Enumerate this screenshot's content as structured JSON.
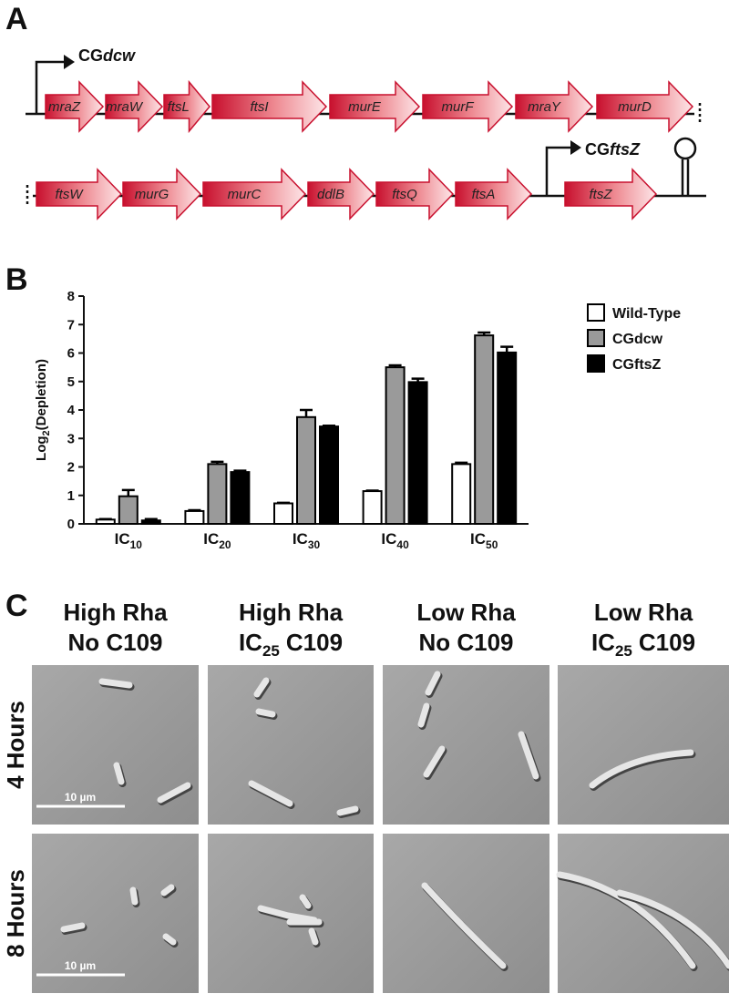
{
  "panels": {
    "a": "A",
    "b": "B",
    "c": "C"
  },
  "operon": {
    "promoter_1": {
      "prefix": "CG",
      "gene": "dcw"
    },
    "row_1": [
      "mraZ",
      "mraW",
      "ftsL",
      "ftsI",
      "murE",
      "murF",
      "mraY",
      "murD"
    ],
    "row_2": [
      "ftsW",
      "murG",
      "murC",
      "ddlB",
      "ftsQ",
      "ftsA",
      "ftsZ"
    ],
    "promoter_2": {
      "prefix": "CG",
      "gene": "ftsZ"
    }
  },
  "chart_data": {
    "type": "bar",
    "y_label": {
      "base": "Log",
      "sub": "2",
      "rest": "(Depletion)"
    },
    "categories": [
      {
        "base": "IC",
        "sub": "10"
      },
      {
        "base": "IC",
        "sub": "20"
      },
      {
        "base": "IC",
        "sub": "30"
      },
      {
        "base": "IC",
        "sub": "40"
      },
      {
        "base": "IC",
        "sub": "50"
      }
    ],
    "series": [
      {
        "name": "Wild-Type",
        "color": "#ffffff",
        "values": [
          0.15,
          0.45,
          0.72,
          1.15,
          2.1
        ],
        "errors": [
          0.02,
          0.03,
          0.02,
          0.02,
          0.05
        ]
      },
      {
        "name": "CGdcw",
        "color": "#9a9a9a",
        "values": [
          0.97,
          2.1,
          3.75,
          5.5,
          6.62
        ],
        "errors": [
          0.22,
          0.08,
          0.25,
          0.07,
          0.1
        ]
      },
      {
        "name": "CGftsZ",
        "color": "#000000",
        "values": [
          0.12,
          1.82,
          3.42,
          4.98,
          6.02
        ],
        "errors": [
          0.05,
          0.05,
          0.03,
          0.12,
          0.2
        ]
      }
    ],
    "ylim": [
      0,
      8
    ],
    "yticks": [
      0,
      1,
      2,
      3,
      4,
      5,
      6,
      7,
      8
    ],
    "grid": false,
    "legend": "right"
  },
  "microscopy": {
    "columns": [
      {
        "line1": "High Rha",
        "line2": "No C109"
      },
      {
        "line1": "High Rha",
        "line2": {
          "base": "IC",
          "sub": "25",
          "rest": "C109"
        }
      },
      {
        "line1": "Low Rha",
        "line2": "No C109"
      },
      {
        "line1": "Low Rha",
        "line2": {
          "base": "IC",
          "sub": "25",
          "rest": "C109"
        }
      }
    ],
    "rows": [
      "4 Hours",
      "8 Hours"
    ],
    "scale_bars": [
      "10 µm",
      "10 µm"
    ]
  }
}
